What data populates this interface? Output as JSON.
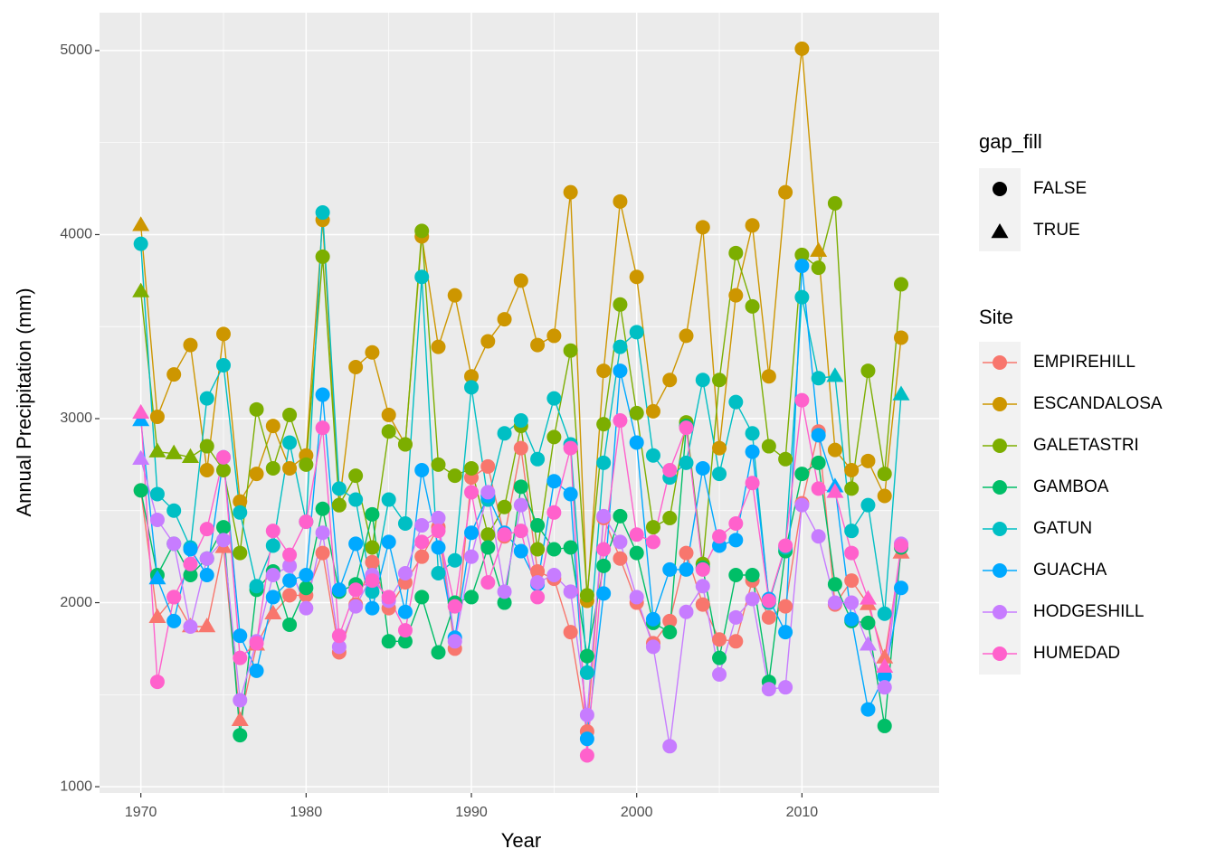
{
  "chart_data": {
    "type": "line",
    "x_label": "Year",
    "y_label": "Annual Precipitation (mm)",
    "xlim": [
      1967.5,
      2018.3
    ],
    "ylim": [
      966,
      5206
    ],
    "xticks": [
      1970,
      1980,
      1990,
      2000,
      2010
    ],
    "yticks": [
      1000,
      2000,
      3000,
      4000,
      5000
    ],
    "grid": true,
    "shape_legend": {
      "title": "gap_fill",
      "labels": [
        "FALSE",
        "TRUE"
      ]
    },
    "color_legend": {
      "title": "Site"
    },
    "x": [
      1970,
      1971,
      1972,
      1973,
      1974,
      1975,
      1976,
      1977,
      1978,
      1979,
      1980,
      1981,
      1982,
      1983,
      1984,
      1985,
      1986,
      1987,
      1988,
      1989,
      1990,
      1991,
      1992,
      1993,
      1994,
      1995,
      1996,
      1997,
      1998,
      1999,
      2000,
      2001,
      2002,
      2003,
      2004,
      2005,
      2006,
      2007,
      2008,
      2009,
      2010,
      2011,
      2012,
      2013,
      2014,
      2015,
      2016
    ],
    "series": [
      {
        "name": "EMPIREHILL",
        "color": "#F8766D",
        "gap_fill_years": [
          1971,
          1973,
          1974,
          1975,
          1976,
          1977,
          1978,
          2014,
          2015,
          2016
        ],
        "values": [
          2610,
          1920,
          2030,
          1870,
          1870,
          2300,
          1360,
          1770,
          1940,
          2040,
          2040,
          2270,
          1730,
          1990,
          2220,
          1970,
          2110,
          2250,
          2410,
          1750,
          2680,
          2740,
          2360,
          2840,
          2170,
          2130,
          1840,
          1300,
          2460,
          2240,
          2000,
          1780,
          1900,
          2270,
          1990,
          1800,
          1790,
          2120,
          1920,
          1980,
          2540,
          2930,
          1990,
          2120,
          1990,
          1700,
          2270
        ]
      },
      {
        "name": "ESCANDALOSA",
        "color": "#CD9600",
        "gap_fill_years": [
          1970,
          2011
        ],
        "values": [
          4050,
          3010,
          3240,
          3400,
          2720,
          3460,
          2550,
          2700,
          2960,
          2730,
          2800,
          4080,
          2530,
          3280,
          3360,
          3020,
          2860,
          3990,
          3390,
          3670,
          3230,
          3420,
          3540,
          3750,
          3400,
          3450,
          4230,
          2010,
          3260,
          4180,
          3770,
          3040,
          3210,
          3450,
          4040,
          2840,
          3670,
          4050,
          3230,
          4230,
          5010,
          3910,
          2830,
          2720,
          2770,
          2580,
          3440
        ]
      },
      {
        "name": "GALETASTRI",
        "color": "#7CAE00",
        "gap_fill_years": [
          1970,
          1971,
          1972,
          1973
        ],
        "values": [
          3690,
          2820,
          2810,
          2790,
          2850,
          2720,
          2270,
          3050,
          2730,
          3020,
          2750,
          3880,
          2530,
          2690,
          2300,
          2930,
          2860,
          4020,
          2750,
          2690,
          2730,
          2370,
          2520,
          2960,
          2290,
          2900,
          3370,
          2040,
          2970,
          3620,
          3030,
          2410,
          2460,
          2980,
          2210,
          3210,
          3900,
          3610,
          2850,
          2780,
          3890,
          3820,
          4170,
          2620,
          3260,
          2700,
          3730
        ]
      },
      {
        "name": "GAMBOA",
        "color": "#00BE67",
        "gap_fill_years": [],
        "values": [
          2610,
          2150,
          2320,
          2150,
          2240,
          2410,
          1280,
          2070,
          2170,
          1880,
          2080,
          2510,
          2060,
          2100,
          2480,
          1790,
          1790,
          2030,
          1730,
          2000,
          2030,
          2300,
          2000,
          2630,
          2420,
          2290,
          2300,
          1710,
          2200,
          2470,
          2270,
          1890,
          1840,
          2960,
          2190,
          1700,
          2150,
          2150,
          1570,
          2280,
          2700,
          2760,
          2100,
          1900,
          1890,
          1330,
          2300
        ]
      },
      {
        "name": "GATUN",
        "color": "#00BFC4",
        "gap_fill_years": [
          2012,
          2016
        ],
        "values": [
          3950,
          2590,
          2500,
          2300,
          3110,
          3290,
          2490,
          2090,
          2310,
          2870,
          2440,
          4120,
          2620,
          2560,
          2060,
          2560,
          2430,
          3770,
          2160,
          2230,
          3170,
          2560,
          2920,
          2990,
          2780,
          3110,
          2860,
          1620,
          2760,
          3390,
          3470,
          2800,
          2680,
          2760,
          3210,
          2700,
          3090,
          2920,
          2000,
          2300,
          3660,
          3220,
          3230,
          2390,
          2530,
          1940,
          3130
        ]
      },
      {
        "name": "GUACHA",
        "color": "#00A9FF",
        "gap_fill_years": [
          1970,
          1971,
          2012
        ],
        "values": [
          2990,
          2130,
          1900,
          2290,
          2150,
          2790,
          1820,
          1630,
          2030,
          2120,
          2150,
          3130,
          2070,
          2320,
          1970,
          2330,
          1950,
          2720,
          2300,
          1810,
          2380,
          2580,
          2380,
          2280,
          2100,
          2660,
          2590,
          1260,
          2050,
          3260,
          2870,
          1910,
          2180,
          2180,
          2730,
          2310,
          2340,
          2820,
          2020,
          1840,
          3830,
          2910,
          2630,
          1910,
          1420,
          1600,
          2080
        ]
      },
      {
        "name": "HODGESHILL",
        "color": "#C77CFF",
        "gap_fill_years": [
          1970,
          2014
        ],
        "values": [
          2780,
          2450,
          2320,
          1870,
          2240,
          2340,
          1470,
          1790,
          2150,
          2200,
          1970,
          2380,
          1760,
          1980,
          2150,
          2010,
          2160,
          2420,
          2460,
          1790,
          2250,
          2600,
          2060,
          2530,
          2110,
          2150,
          2060,
          1390,
          2470,
          2330,
          2030,
          1760,
          1220,
          1950,
          2090,
          1610,
          1920,
          2020,
          1530,
          1540,
          2530,
          2360,
          2000,
          2000,
          1770,
          1540,
          2320
        ]
      },
      {
        "name": "HUMEDAD",
        "color": "#FF61CC",
        "gap_fill_years": [
          1970,
          2012,
          2014,
          2015
        ],
        "values": [
          3030,
          1570,
          2030,
          2210,
          2400,
          2790,
          1700,
          1780,
          2390,
          2260,
          2440,
          2950,
          1820,
          2070,
          2120,
          2030,
          1850,
          2330,
          2390,
          1980,
          2600,
          2110,
          2370,
          2390,
          2030,
          2490,
          2840,
          1170,
          2290,
          2990,
          2370,
          2330,
          2720,
          2950,
          2180,
          2360,
          2430,
          2650,
          2010,
          2310,
          3100,
          2620,
          2600,
          2270,
          2020,
          1650,
          2310
        ]
      }
    ]
  }
}
